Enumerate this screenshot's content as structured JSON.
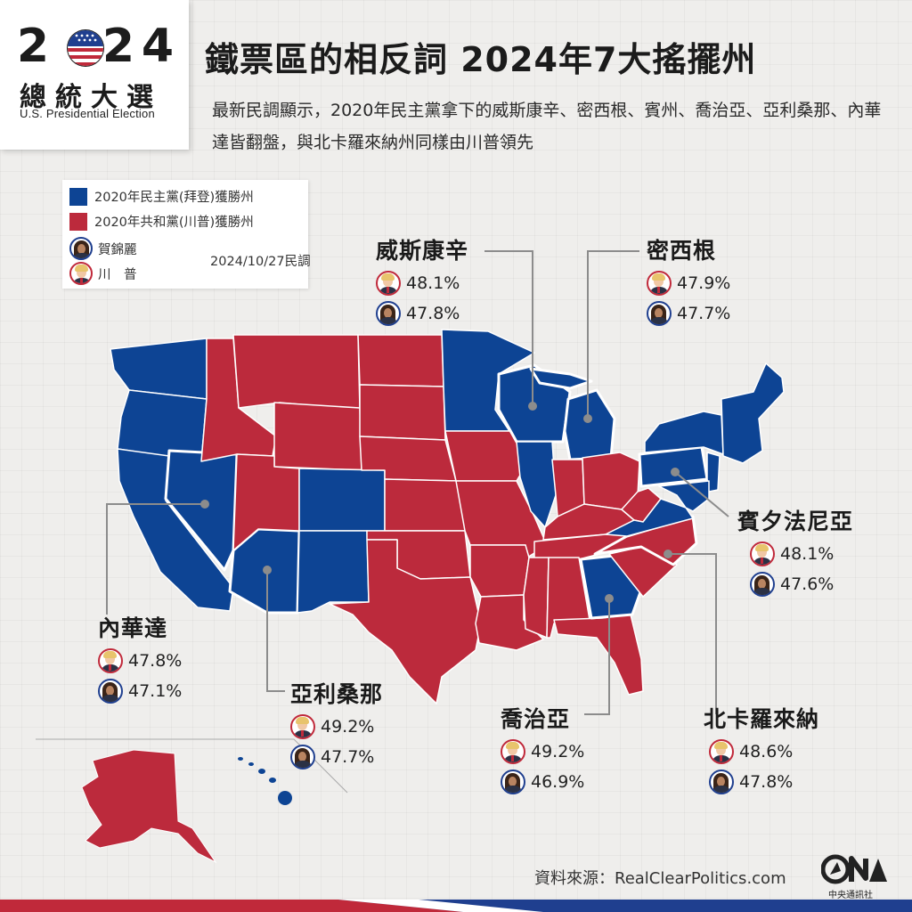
{
  "badge": {
    "digits": [
      "2",
      "2",
      "4"
    ],
    "title": "總統大選",
    "subtitle": "U.S. Presidential Election"
  },
  "header": {
    "title": "鐵票區的相反詞  2024年7大搖擺州",
    "subtitle": "最新民調顯示，2020年民主黨拿下的威斯康辛、密西根、賓州、喬治亞、亞利桑那、內華達皆翻盤，與北卡羅來納州同樣由川普領先"
  },
  "legend": {
    "dem": "2020年民主黨(拜登)獲勝州",
    "rep": "2020年共和黨(川普)獲勝州",
    "harris": "賀錦麗",
    "trump": "川　普",
    "poll_date": "2024/10/27民調"
  },
  "colors": {
    "dem": "#0d4494",
    "rep": "#bc2a3c",
    "background": "#efeeec",
    "leader_line": "#8c8c8c"
  },
  "states": {
    "wisconsin": {
      "name": "威斯康辛",
      "trump": "48.1%",
      "harris": "47.8%"
    },
    "michigan": {
      "name": "密西根",
      "trump": "47.9%",
      "harris": "47.7%"
    },
    "pennsylvania": {
      "name": "賓夕法尼亞",
      "trump": "48.1%",
      "harris": "47.6%"
    },
    "nevada": {
      "name": "內華達",
      "trump": "47.8%",
      "harris": "47.1%"
    },
    "arizona": {
      "name": "亞利桑那",
      "trump": "49.2%",
      "harris": "47.7%"
    },
    "georgia": {
      "name": "喬治亞",
      "trump": "49.2%",
      "harris": "46.9%"
    },
    "north_carolina": {
      "name": "北卡羅來納",
      "trump": "48.6%",
      "harris": "47.8%"
    }
  },
  "footer": {
    "source": "資料來源：RealClearPolitics.com",
    "logo_text": "中央通訊社"
  }
}
